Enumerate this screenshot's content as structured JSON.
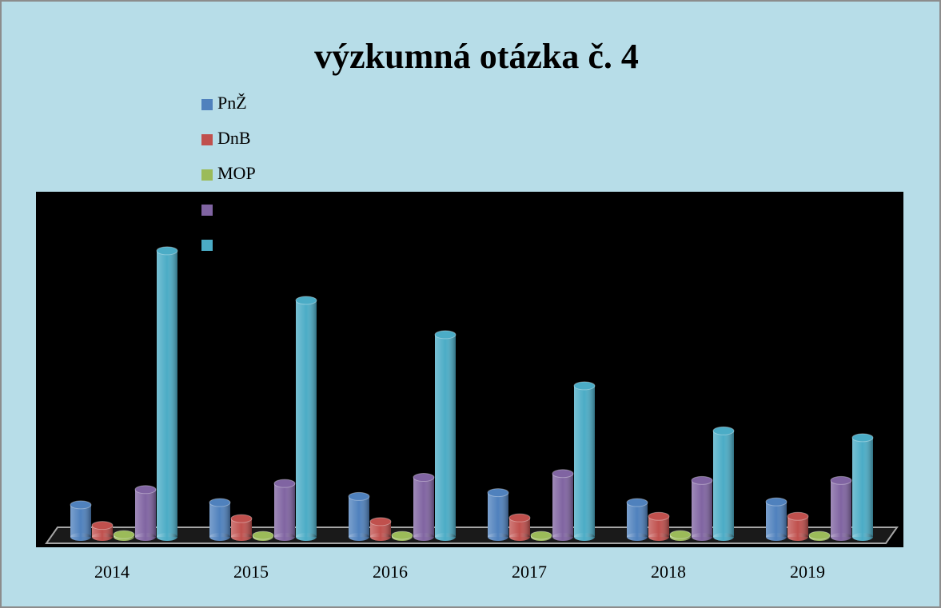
{
  "chart_data": {
    "type": "bar3d",
    "title": "výzkumná otázka č. 4",
    "categories": [
      "2014",
      "2015",
      "2016",
      "2017",
      "2018",
      "2019"
    ],
    "ylim": [
      0,
      400
    ],
    "series": [
      {
        "name": "PnŽ",
        "color": "#4f81bd",
        "values": [
          42,
          45,
          53,
          58,
          45,
          46
        ]
      },
      {
        "name": "DnB",
        "color": "#c0504d",
        "values": [
          15,
          24,
          20,
          25,
          27,
          27
        ]
      },
      {
        "name": "MOP",
        "color": "#9bbb59",
        "values": [
          3,
          2,
          2,
          2,
          3,
          2
        ]
      },
      {
        "color": "#8064a2",
        "values": [
          62,
          70,
          78,
          83,
          74,
          74
        ]
      },
      {
        "color": "#4bacc6",
        "values": [
          375,
          310,
          265,
          198,
          139,
          130
        ]
      }
    ]
  }
}
